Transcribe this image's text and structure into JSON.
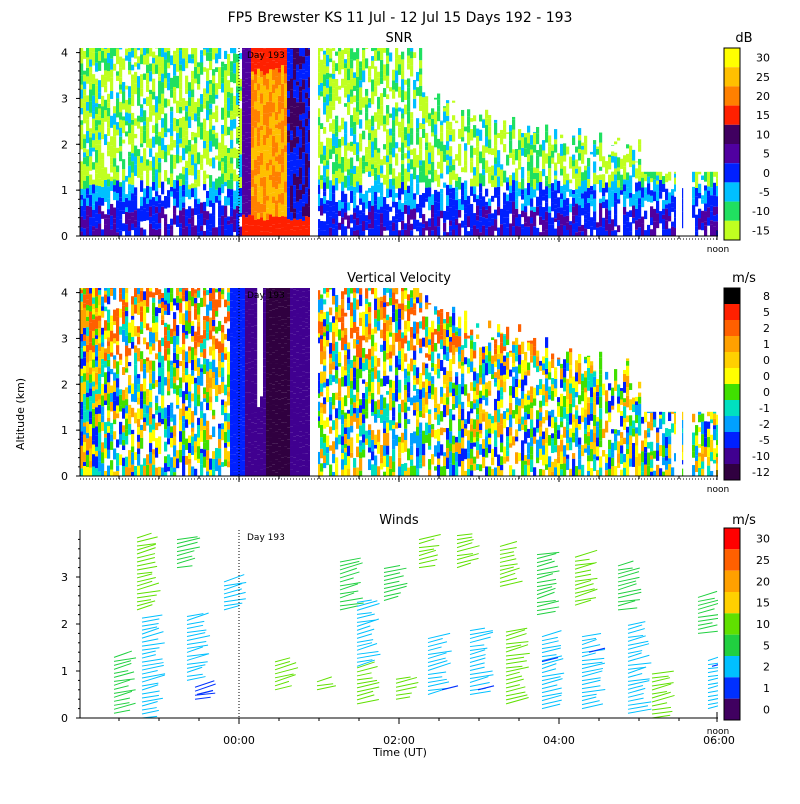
{
  "title": "FP5 Brewster KS  11 Jul - 12 Jul 15 Days 192 - 193",
  "shared": {
    "ylabel": "Altitude (km)",
    "xlabel": "Time (UT)",
    "day_marker": "Day 193",
    "noon_label": "noon"
  },
  "chart_data": [
    {
      "type": "heatmap",
      "title": "SNR",
      "units": "dB",
      "ylim": [
        0,
        4.1
      ],
      "yticks": [
        "0",
        "1",
        "2",
        "3",
        "4"
      ],
      "colorbar": {
        "labels": [
          "30",
          "25",
          "20",
          "15",
          "10",
          "5",
          "0",
          "-5",
          "-10",
          "-15"
        ],
        "colors": [
          "#ffff00",
          "#ffc000",
          "#ff8000",
          "#ff2000",
          "#400060",
          "#5000a0",
          "#0020ff",
          "#00c0ff",
          "#20e060",
          "#c0ff20"
        ]
      }
    },
    {
      "type": "heatmap",
      "title": "Vertical Velocity",
      "units": "m/s",
      "ylim": [
        0,
        4.1
      ],
      "yticks": [
        "0",
        "1",
        "2",
        "3",
        "4"
      ],
      "colorbar": {
        "labels": [
          "8",
          "5",
          "2",
          "1",
          "0",
          "0",
          "0",
          "-1",
          "-2",
          "-5",
          "-10",
          "-12"
        ],
        "colors": [
          "#000000",
          "#ff2000",
          "#ff6000",
          "#ffa000",
          "#ffd000",
          "#ffff00",
          "#40e000",
          "#00e0c0",
          "#00a0ff",
          "#0020ff",
          "#400090",
          "#300040"
        ]
      }
    },
    {
      "type": "wind-barbs",
      "title": "Winds",
      "units": "m/s",
      "ylim": [
        0,
        4
      ],
      "yticks": [
        "0",
        "1",
        "2",
        "3"
      ],
      "xticks": [
        "00:00",
        "02:00",
        "04:00",
        "06:00"
      ],
      "colorbar": {
        "labels": [
          "30",
          "25",
          "20",
          "15",
          "10",
          "5",
          "2",
          "1",
          "0"
        ],
        "colors": [
          "#ff0000",
          "#ff6000",
          "#ffa000",
          "#ffd000",
          "#60e000",
          "#20d040",
          "#00c0ff",
          "#0030ff",
          "#400060"
        ]
      }
    }
  ]
}
